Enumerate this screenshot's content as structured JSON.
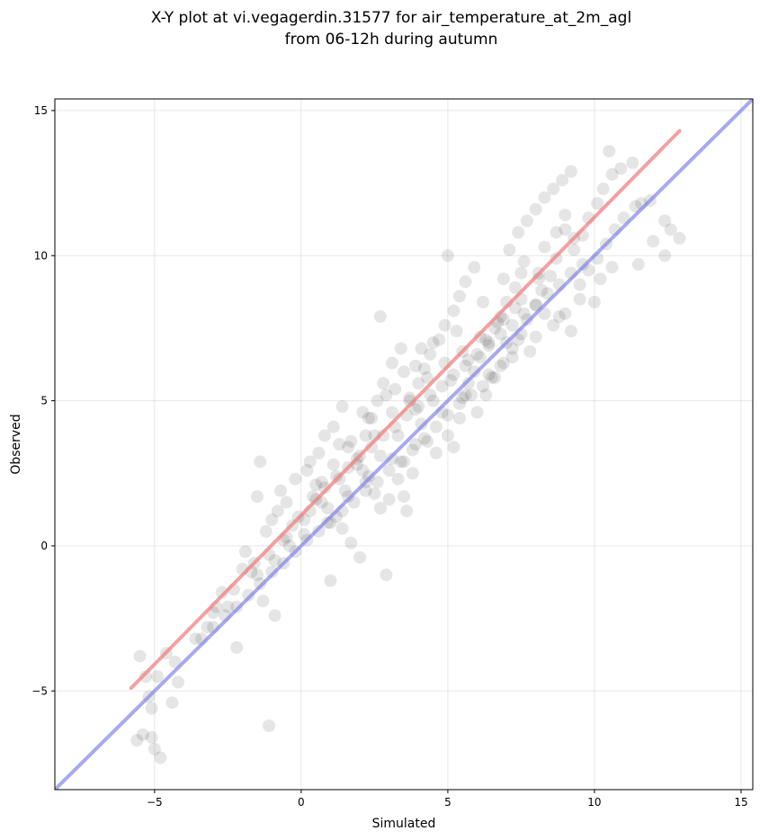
{
  "chart_data": {
    "type": "scatter",
    "title_lines": [
      "X-Y plot at vi.vegagerdin.31577 for air_temperature_at_2m_agl",
      "from 06-12h during autumn"
    ],
    "xlabel": "Simulated",
    "ylabel": "Observed",
    "xlim": [
      -8.4,
      15.4
    ],
    "ylim": [
      -8.4,
      15.4
    ],
    "xticks": [
      -5,
      0,
      5,
      10,
      15
    ],
    "yticks": [
      -5,
      0,
      5,
      10,
      15
    ],
    "xtick_labels": [
      "−5",
      "0",
      "5",
      "10",
      "15"
    ],
    "ytick_labels": [
      "−5",
      "0",
      "5",
      "10",
      "15"
    ],
    "grid": true,
    "colors": {
      "points": "#000000",
      "fit_line": "#f08080",
      "identity_line": "#7b7bea"
    },
    "fit_line": {
      "x": [
        -5.8,
        12.9
      ],
      "y": [
        -4.9,
        14.3
      ]
    },
    "identity_line": {
      "x": [
        -8.4,
        15.4
      ],
      "y": [
        -8.4,
        15.4
      ]
    },
    "points": [
      [
        -5.2,
        -5.2
      ],
      [
        -5.4,
        -6.5
      ],
      [
        -5.0,
        -7.0
      ],
      [
        -5.5,
        -3.8
      ],
      [
        -5.3,
        -4.5
      ],
      [
        -4.9,
        -4.5
      ],
      [
        -4.6,
        -3.7
      ],
      [
        -4.3,
        -4.0
      ],
      [
        -5.1,
        -5.6
      ],
      [
        -4.8,
        -7.3
      ],
      [
        -5.6,
        -6.7
      ],
      [
        -5.1,
        -6.6
      ],
      [
        -4.2,
        -4.7
      ],
      [
        -4.4,
        -5.4
      ],
      [
        -3.6,
        -3.2
      ],
      [
        -3.2,
        -2.8
      ],
      [
        -3.0,
        -2.3
      ],
      [
        -2.7,
        -1.6
      ],
      [
        -2.5,
        -2.1
      ],
      [
        -2.2,
        -3.5
      ],
      [
        -2.0,
        -0.8
      ],
      [
        -1.9,
        -0.2
      ],
      [
        -1.6,
        -0.6
      ],
      [
        -1.5,
        -1.0
      ],
      [
        -1.3,
        -1.9
      ],
      [
        -0.9,
        -2.4
      ],
      [
        -1.2,
        0.5
      ],
      [
        -1.0,
        0.9
      ],
      [
        -0.8,
        1.2
      ],
      [
        -0.5,
        1.5
      ],
      [
        -0.3,
        0.7
      ],
      [
        -0.6,
        0.2
      ],
      [
        -0.1,
        1.0
      ],
      [
        -1.4,
        2.9
      ],
      [
        -1.5,
        1.7
      ],
      [
        -1.1,
        -6.2
      ],
      [
        -0.9,
        -0.5
      ],
      [
        -0.4,
        0.0
      ],
      [
        0.1,
        0.4
      ],
      [
        0.3,
        1.2
      ],
      [
        0.5,
        1.6
      ],
      [
        0.7,
        2.2
      ],
      [
        0.9,
        0.8
      ],
      [
        1.2,
        1.0
      ],
      [
        1.4,
        0.6
      ],
      [
        1.7,
        0.1
      ],
      [
        2.0,
        -0.4
      ],
      [
        1.0,
        -1.2
      ],
      [
        2.9,
        -1.0
      ],
      [
        0.2,
        2.6
      ],
      [
        0.6,
        3.2
      ],
      [
        0.8,
        3.8
      ],
      [
        1.1,
        4.1
      ],
      [
        1.4,
        4.8
      ],
      [
        1.6,
        3.4
      ],
      [
        1.9,
        2.8
      ],
      [
        2.2,
        2.2
      ],
      [
        2.5,
        1.8
      ],
      [
        2.7,
        1.3
      ],
      [
        3.0,
        1.6
      ],
      [
        3.3,
        2.3
      ],
      [
        3.5,
        2.9
      ],
      [
        3.8,
        2.5
      ],
      [
        3.6,
        1.2
      ],
      [
        3.5,
        1.7
      ],
      [
        2.2,
        3.8
      ],
      [
        2.4,
        4.4
      ],
      [
        2.6,
        5.0
      ],
      [
        2.8,
        5.6
      ],
      [
        3.1,
        6.3
      ],
      [
        3.4,
        6.8
      ],
      [
        2.7,
        7.9
      ],
      [
        3.7,
        5.1
      ],
      [
        3.9,
        4.7
      ],
      [
        4.1,
        4.2
      ],
      [
        4.3,
        3.6
      ],
      [
        4.6,
        3.2
      ],
      [
        5.0,
        3.8
      ],
      [
        5.2,
        3.4
      ],
      [
        5.4,
        4.4
      ],
      [
        4.0,
        5.6
      ],
      [
        4.2,
        6.1
      ],
      [
        4.4,
        6.6
      ],
      [
        4.7,
        7.1
      ],
      [
        4.9,
        7.6
      ],
      [
        5.2,
        8.1
      ],
      [
        5.4,
        8.6
      ],
      [
        5.6,
        9.1
      ],
      [
        5.9,
        9.6
      ],
      [
        5.0,
        10.0
      ],
      [
        5.5,
        5.1
      ],
      [
        5.7,
        5.6
      ],
      [
        5.9,
        6.0
      ],
      [
        6.1,
        6.5
      ],
      [
        6.4,
        7.0
      ],
      [
        6.6,
        7.5
      ],
      [
        6.8,
        7.9
      ],
      [
        7.0,
        8.4
      ],
      [
        7.3,
        8.9
      ],
      [
        7.5,
        9.4
      ],
      [
        6.0,
        4.6
      ],
      [
        6.3,
        5.2
      ],
      [
        6.6,
        5.8
      ],
      [
        6.9,
        6.3
      ],
      [
        7.2,
        6.8
      ],
      [
        7.5,
        7.3
      ],
      [
        7.7,
        7.8
      ],
      [
        8.0,
        8.3
      ],
      [
        8.2,
        8.8
      ],
      [
        8.5,
        9.3
      ],
      [
        7.1,
        10.2
      ],
      [
        7.4,
        10.8
      ],
      [
        7.7,
        11.2
      ],
      [
        8.0,
        11.6
      ],
      [
        8.3,
        12.0
      ],
      [
        8.6,
        12.3
      ],
      [
        8.9,
        12.6
      ],
      [
        9.2,
        12.9
      ],
      [
        9.0,
        11.4
      ],
      [
        8.7,
        10.8
      ],
      [
        9.3,
        10.2
      ],
      [
        9.6,
        10.7
      ],
      [
        9.8,
        11.3
      ],
      [
        10.1,
        11.8
      ],
      [
        10.3,
        12.3
      ],
      [
        10.6,
        12.8
      ],
      [
        10.9,
        13.0
      ],
      [
        11.3,
        13.2
      ],
      [
        10.5,
        13.6
      ],
      [
        11.6,
        11.8
      ],
      [
        9.5,
        9.0
      ],
      [
        9.8,
        9.5
      ],
      [
        10.1,
        9.9
      ],
      [
        10.4,
        10.4
      ],
      [
        10.7,
        10.9
      ],
      [
        11.0,
        11.3
      ],
      [
        11.4,
        11.7
      ],
      [
        11.9,
        11.9
      ],
      [
        12.0,
        10.5
      ],
      [
        12.4,
        10.0
      ],
      [
        12.9,
        10.6
      ],
      [
        12.6,
        10.9
      ],
      [
        12.4,
        11.2
      ],
      [
        11.5,
        9.7
      ],
      [
        10.6,
        9.6
      ],
      [
        10.2,
        9.2
      ],
      [
        9.2,
        7.4
      ],
      [
        9.0,
        8.0
      ],
      [
        8.6,
        7.6
      ],
      [
        8.3,
        8.0
      ],
      [
        7.8,
        6.7
      ],
      [
        7.4,
        7.1
      ],
      [
        7.0,
        7.0
      ],
      [
        6.8,
        6.2
      ],
      [
        6.5,
        5.8
      ],
      [
        6.2,
        5.5
      ],
      [
        5.8,
        5.2
      ],
      [
        5.4,
        4.9
      ],
      [
        5.0,
        4.5
      ],
      [
        4.6,
        4.1
      ],
      [
        4.2,
        3.7
      ],
      [
        3.8,
        3.3
      ],
      [
        3.4,
        2.9
      ],
      [
        3.0,
        2.6
      ],
      [
        2.6,
        2.2
      ],
      [
        2.2,
        1.9
      ],
      [
        1.8,
        1.5
      ],
      [
        1.4,
        1.2
      ],
      [
        1.0,
        0.8
      ],
      [
        0.6,
        0.5
      ],
      [
        0.2,
        0.2
      ],
      [
        -0.2,
        -0.2
      ],
      [
        -0.6,
        -0.6
      ],
      [
        -1.0,
        -0.9
      ],
      [
        -1.4,
        -1.3
      ],
      [
        -1.8,
        -1.7
      ],
      [
        -2.2,
        -2.1
      ],
      [
        -2.6,
        -2.4
      ],
      [
        -3.0,
        -2.8
      ],
      [
        -3.4,
        -3.2
      ],
      [
        0.4,
        1.7
      ],
      [
        0.8,
        2.0
      ],
      [
        1.2,
        2.4
      ],
      [
        1.6,
        2.7
      ],
      [
        2.0,
        3.1
      ],
      [
        2.4,
        3.4
      ],
      [
        2.8,
        3.8
      ],
      [
        3.2,
        4.1
      ],
      [
        3.6,
        4.5
      ],
      [
        4.0,
        4.8
      ],
      [
        4.4,
        5.2
      ],
      [
        4.8,
        5.5
      ],
      [
        5.2,
        5.9
      ],
      [
        5.6,
        6.2
      ],
      [
        6.0,
        6.6
      ],
      [
        6.4,
        6.9
      ],
      [
        6.8,
        7.3
      ],
      [
        7.2,
        7.6
      ],
      [
        7.6,
        8.0
      ],
      [
        8.0,
        8.3
      ],
      [
        8.4,
        8.7
      ],
      [
        8.8,
        9.0
      ],
      [
        9.2,
        9.4
      ],
      [
        9.6,
        9.7
      ],
      [
        -0.7,
        1.9
      ],
      [
        -0.2,
        2.3
      ],
      [
        0.3,
        2.9
      ],
      [
        1.3,
        3.5
      ],
      [
        2.1,
        4.6
      ],
      [
        3.2,
        5.4
      ],
      [
        3.9,
        6.2
      ],
      [
        4.5,
        7.0
      ],
      [
        5.3,
        7.4
      ],
      [
        6.2,
        8.4
      ],
      [
        6.9,
        9.2
      ],
      [
        7.6,
        9.8
      ],
      [
        8.3,
        10.3
      ],
      [
        9.0,
        10.9
      ],
      [
        8.1,
        9.4
      ],
      [
        7.3,
        8.2
      ],
      [
        6.7,
        7.7
      ],
      [
        6.1,
        7.2
      ],
      [
        5.5,
        6.7
      ],
      [
        4.9,
        6.3
      ],
      [
        4.3,
        5.8
      ],
      [
        3.7,
        5.0
      ],
      [
        3.1,
        4.6
      ],
      [
        2.5,
        3.8
      ],
      [
        1.9,
        3.0
      ],
      [
        1.3,
        2.3
      ],
      [
        0.7,
        1.5
      ],
      [
        0.1,
        0.9
      ],
      [
        -0.5,
        0.3
      ],
      [
        -1.1,
        -0.3
      ],
      [
        -1.7,
        -0.9
      ],
      [
        -2.3,
        -1.5
      ],
      [
        -2.9,
        -2.1
      ],
      [
        4.5,
        5.0
      ],
      [
        5.1,
        5.7
      ],
      [
        5.7,
        6.4
      ],
      [
        6.3,
        7.1
      ],
      [
        6.9,
        7.8
      ],
      [
        7.5,
        8.5
      ],
      [
        8.1,
        9.2
      ],
      [
        8.7,
        9.9
      ],
      [
        9.3,
        10.6
      ],
      [
        3.3,
        3.8
      ],
      [
        2.7,
        3.1
      ],
      [
        2.1,
        2.6
      ],
      [
        1.5,
        1.9
      ],
      [
        0.9,
        1.3
      ],
      [
        4.8,
        4.6
      ],
      [
        5.6,
        5.2
      ],
      [
        6.4,
        5.9
      ],
      [
        7.2,
        6.5
      ],
      [
        8.0,
        7.2
      ],
      [
        8.8,
        7.9
      ],
      [
        9.5,
        8.5
      ],
      [
        10.0,
        8.4
      ],
      [
        3.9,
        3.5
      ],
      [
        3.1,
        3.0
      ],
      [
        2.3,
        2.4
      ],
      [
        1.6,
        1.7
      ],
      [
        4.1,
        6.8
      ],
      [
        3.5,
        6.0
      ],
      [
        2.9,
        5.2
      ],
      [
        2.3,
        4.4
      ],
      [
        1.7,
        3.6
      ],
      [
        1.1,
        2.8
      ],
      [
        0.5,
        2.1
      ]
    ]
  }
}
